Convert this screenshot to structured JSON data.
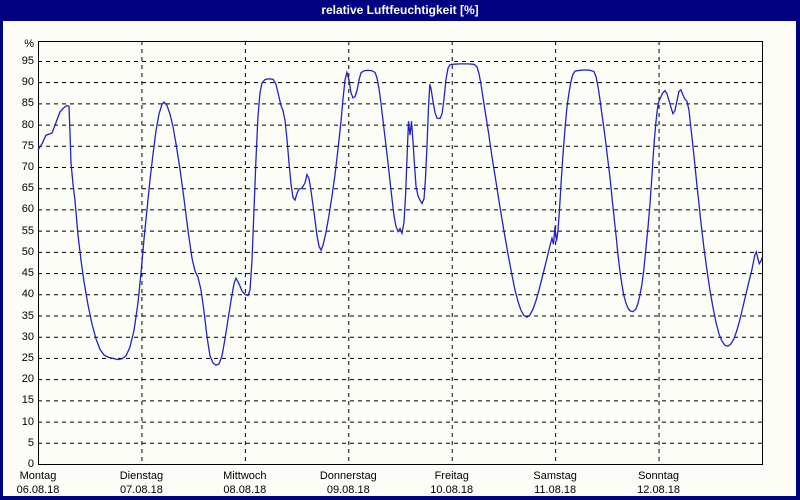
{
  "window": {
    "title": "relative Luftfeuchtigkeit [%]"
  },
  "colors": {
    "frame": "#000080",
    "title_text": "#ffffff",
    "plot_background": "#fdfdf8",
    "grid": "#000000",
    "axis": "#000000",
    "line": "#2222c8",
    "label_text": "#000000"
  },
  "chart_data": {
    "type": "line",
    "title": "relative Luftfeuchtigkeit [%]",
    "y_unit_label": "%",
    "ylabel": "relative Luftfeuchtigkeit",
    "ylim": [
      0,
      99.7
    ],
    "y_ticks": [
      0,
      5,
      10,
      15,
      20,
      25,
      30,
      35,
      40,
      45,
      50,
      55,
      60,
      65,
      70,
      75,
      80,
      85,
      90,
      95
    ],
    "grid": "dashed",
    "legend_position": "none",
    "x_days": [
      {
        "name": "Montag",
        "date": "06.08.18"
      },
      {
        "name": "Dienstag",
        "date": "07.08.18"
      },
      {
        "name": "Mittwoch",
        "date": "08.08.18"
      },
      {
        "name": "Donnerstag",
        "date": "09.08.18"
      },
      {
        "name": "Freitag",
        "date": "10.08.18"
      },
      {
        "name": "Samstag",
        "date": "11.08.18"
      },
      {
        "name": "Sonntag",
        "date": "12.08.18"
      }
    ],
    "series": [
      {
        "name": "relative Luftfeuchtigkeit [%]",
        "color": "#2222c8",
        "x_unit": "days_since_monday_0h",
        "points": [
          [
            0,
            74
          ],
          [
            0.04,
            75.5
          ],
          [
            0.077,
            77.5
          ],
          [
            0.135,
            78
          ],
          [
            0.174,
            80.5
          ],
          [
            0.213,
            83
          ],
          [
            0.251,
            84
          ],
          [
            0.28,
            84.5
          ],
          [
            0.3,
            84.3
          ],
          [
            0.309,
            78
          ],
          [
            0.319,
            71
          ],
          [
            0.338,
            66
          ],
          [
            0.358,
            62
          ],
          [
            0.387,
            54
          ],
          [
            0.416,
            48
          ],
          [
            0.445,
            43
          ],
          [
            0.483,
            37.5
          ],
          [
            0.522,
            33
          ],
          [
            0.561,
            29.5
          ],
          [
            0.599,
            27
          ],
          [
            0.638,
            25.7
          ],
          [
            0.677,
            25.2
          ],
          [
            0.725,
            24.9
          ],
          [
            0.773,
            24.6
          ],
          [
            0.812,
            24.8
          ],
          [
            0.851,
            25.5
          ],
          [
            0.889,
            27.5
          ],
          [
            0.928,
            31.5
          ],
          [
            0.967,
            38
          ],
          [
            0.996,
            45
          ],
          [
            1.025,
            53
          ],
          [
            1.054,
            60
          ],
          [
            1.083,
            67
          ],
          [
            1.112,
            73
          ],
          [
            1.141,
            78.5
          ],
          [
            1.17,
            82.5
          ],
          [
            1.199,
            84.8
          ],
          [
            1.218,
            85.3
          ],
          [
            1.247,
            84.5
          ],
          [
            1.276,
            82.5
          ],
          [
            1.305,
            79.5
          ],
          [
            1.334,
            75.5
          ],
          [
            1.373,
            69.5
          ],
          [
            1.412,
            62.5
          ],
          [
            1.45,
            55
          ],
          [
            1.489,
            48.5
          ],
          [
            1.518,
            45.5
          ],
          [
            1.547,
            44
          ],
          [
            1.576,
            41
          ],
          [
            1.605,
            36
          ],
          [
            1.634,
            30
          ],
          [
            1.663,
            25.5
          ],
          [
            1.692,
            23.8
          ],
          [
            1.721,
            23.3
          ],
          [
            1.75,
            23.6
          ],
          [
            1.779,
            25.5
          ],
          [
            1.808,
            29.5
          ],
          [
            1.837,
            34
          ],
          [
            1.866,
            38.5
          ],
          [
            1.895,
            42.5
          ],
          [
            1.914,
            43.8
          ],
          [
            1.943,
            42.5
          ],
          [
            1.972,
            40.8
          ],
          [
            2.0,
            40
          ],
          [
            2.03,
            39.7
          ],
          [
            2.05,
            41
          ],
          [
            2.069,
            48
          ],
          [
            2.088,
            60
          ],
          [
            2.108,
            72
          ],
          [
            2.127,
            82
          ],
          [
            2.146,
            87.5
          ],
          [
            2.166,
            89.8
          ],
          [
            2.195,
            90.6
          ],
          [
            2.233,
            90.8
          ],
          [
            2.272,
            90.7
          ],
          [
            2.301,
            89.5
          ],
          [
            2.33,
            86.5
          ],
          [
            2.349,
            84.5
          ],
          [
            2.369,
            83.3
          ],
          [
            2.388,
            81
          ],
          [
            2.407,
            76.5
          ],
          [
            2.427,
            71
          ],
          [
            2.446,
            66
          ],
          [
            2.465,
            62.8
          ],
          [
            2.485,
            62.2
          ],
          [
            2.504,
            63.8
          ],
          [
            2.523,
            64.8
          ],
          [
            2.552,
            65
          ],
          [
            2.581,
            66.2
          ],
          [
            2.601,
            68.2
          ],
          [
            2.62,
            67.3
          ],
          [
            2.639,
            64.5
          ],
          [
            2.659,
            61
          ],
          [
            2.678,
            57.5
          ],
          [
            2.697,
            54
          ],
          [
            2.717,
            51.3
          ],
          [
            2.736,
            50.4
          ],
          [
            2.755,
            51.5
          ],
          [
            2.784,
            54.5
          ],
          [
            2.813,
            58.5
          ],
          [
            2.842,
            63
          ],
          [
            2.871,
            68
          ],
          [
            2.9,
            74
          ],
          [
            2.929,
            80.5
          ],
          [
            2.949,
            86
          ],
          [
            2.968,
            90.5
          ],
          [
            2.987,
            92.3
          ],
          [
            3.007,
            90.5
          ],
          [
            3.026,
            87.5
          ],
          [
            3.046,
            86.3
          ],
          [
            3.065,
            86.6
          ],
          [
            3.084,
            88
          ],
          [
            3.104,
            90.5
          ],
          [
            3.123,
            92.2
          ],
          [
            3.152,
            92.7
          ],
          [
            3.191,
            92.8
          ],
          [
            3.229,
            92.7
          ],
          [
            3.258,
            92.3
          ],
          [
            3.278,
            91
          ],
          [
            3.297,
            88.5
          ],
          [
            3.316,
            85
          ],
          [
            3.336,
            81
          ],
          [
            3.355,
            77
          ],
          [
            3.384,
            71
          ],
          [
            3.413,
            64.5
          ],
          [
            3.442,
            58.5
          ],
          [
            3.461,
            56
          ],
          [
            3.481,
            54.8
          ],
          [
            3.5,
            55.5
          ],
          [
            3.519,
            54.4
          ],
          [
            3.539,
            57
          ],
          [
            3.553,
            63
          ],
          [
            3.568,
            72
          ],
          [
            3.582,
            80.8
          ],
          [
            3.597,
            77.5
          ],
          [
            3.611,
            80.8
          ],
          [
            3.626,
            76
          ],
          [
            3.64,
            70.5
          ],
          [
            3.655,
            65.5
          ],
          [
            3.674,
            63.2
          ],
          [
            3.693,
            62.2
          ],
          [
            3.713,
            61.4
          ],
          [
            3.732,
            62.5
          ],
          [
            3.746,
            67
          ],
          [
            3.761,
            75
          ],
          [
            3.775,
            83.5
          ],
          [
            3.788,
            89.5
          ],
          [
            3.8,
            88.5
          ],
          [
            3.819,
            85.5
          ],
          [
            3.838,
            82.8
          ],
          [
            3.858,
            81.5
          ],
          [
            3.887,
            81.4
          ],
          [
            3.906,
            82.5
          ],
          [
            3.925,
            86
          ],
          [
            3.944,
            90.5
          ],
          [
            3.964,
            93.3
          ],
          [
            3.983,
            94.1
          ],
          [
            4.002,
            94.2
          ],
          [
            4.08,
            94.3
          ],
          [
            4.157,
            94.3
          ],
          [
            4.215,
            94.2
          ],
          [
            4.244,
            93.6
          ],
          [
            4.264,
            92
          ],
          [
            4.283,
            89.5
          ],
          [
            4.302,
            86.5
          ],
          [
            4.331,
            82
          ],
          [
            4.36,
            77.5
          ],
          [
            4.389,
            72.5
          ],
          [
            4.428,
            66.5
          ],
          [
            4.467,
            60.5
          ],
          [
            4.505,
            55
          ],
          [
            4.544,
            49.5
          ],
          [
            4.583,
            44.5
          ],
          [
            4.612,
            41
          ],
          [
            4.641,
            38.3
          ],
          [
            4.67,
            36.2
          ],
          [
            4.699,
            35
          ],
          [
            4.728,
            34.6
          ],
          [
            4.757,
            35.2
          ],
          [
            4.786,
            36.5
          ],
          [
            4.815,
            38.5
          ],
          [
            4.844,
            41
          ],
          [
            4.873,
            43.8
          ],
          [
            4.902,
            46.6
          ],
          [
            4.931,
            49.5
          ],
          [
            4.95,
            51.5
          ],
          [
            4.97,
            53.2
          ],
          [
            4.984,
            51.8
          ],
          [
            4.999,
            56
          ],
          [
            5.013,
            52.5
          ],
          [
            5.028,
            55
          ],
          [
            5.042,
            60
          ],
          [
            5.057,
            66
          ],
          [
            5.076,
            73
          ],
          [
            5.095,
            79
          ],
          [
            5.114,
            84
          ],
          [
            5.134,
            87.5
          ],
          [
            5.153,
            90.2
          ],
          [
            5.172,
            91.8
          ],
          [
            5.192,
            92.6
          ],
          [
            5.24,
            92.8
          ],
          [
            5.288,
            92.9
          ],
          [
            5.337,
            92.8
          ],
          [
            5.375,
            92.5
          ],
          [
            5.395,
            91.3
          ],
          [
            5.414,
            89
          ],
          [
            5.433,
            86
          ],
          [
            5.452,
            82.5
          ],
          [
            5.472,
            79
          ],
          [
            5.491,
            75.5
          ],
          [
            5.51,
            71.5
          ],
          [
            5.53,
            67.5
          ],
          [
            5.549,
            63
          ],
          [
            5.568,
            58.5
          ],
          [
            5.588,
            54
          ],
          [
            5.607,
            49.5
          ],
          [
            5.626,
            45.5
          ],
          [
            5.645,
            42.3
          ],
          [
            5.665,
            39.7
          ],
          [
            5.684,
            38
          ],
          [
            5.703,
            36.8
          ],
          [
            5.723,
            36.1
          ],
          [
            5.752,
            35.9
          ],
          [
            5.781,
            36.5
          ],
          [
            5.8,
            37.8
          ],
          [
            5.819,
            39.8
          ],
          [
            5.839,
            42.3
          ],
          [
            5.858,
            46
          ],
          [
            5.877,
            50.5
          ],
          [
            5.897,
            55.5
          ],
          [
            5.916,
            61
          ],
          [
            5.931,
            66
          ],
          [
            5.945,
            71.5
          ],
          [
            5.96,
            76.5
          ],
          [
            5.974,
            80.5
          ],
          [
            5.988,
            83.5
          ],
          [
            6.003,
            85.5
          ],
          [
            6.023,
            86.6
          ],
          [
            6.042,
            87.5
          ],
          [
            6.061,
            88
          ],
          [
            6.081,
            87.3
          ],
          [
            6.1,
            85.8
          ],
          [
            6.12,
            84
          ],
          [
            6.139,
            82.6
          ],
          [
            6.158,
            83.3
          ],
          [
            6.177,
            85.5
          ],
          [
            6.197,
            87.8
          ],
          [
            6.216,
            88.2
          ],
          [
            6.235,
            87
          ],
          [
            6.255,
            86
          ],
          [
            6.274,
            85.5
          ],
          [
            6.293,
            83.5
          ],
          [
            6.312,
            79.5
          ],
          [
            6.332,
            75
          ],
          [
            6.351,
            70.5
          ],
          [
            6.37,
            66
          ],
          [
            6.39,
            61.5
          ],
          [
            6.409,
            57
          ],
          [
            6.438,
            51
          ],
          [
            6.467,
            45.8
          ],
          [
            6.496,
            41
          ],
          [
            6.525,
            37
          ],
          [
            6.554,
            33.5
          ],
          [
            6.583,
            30.7
          ],
          [
            6.612,
            29
          ],
          [
            6.641,
            28
          ],
          [
            6.67,
            27.8
          ],
          [
            6.699,
            28.3
          ],
          [
            6.728,
            29.5
          ],
          [
            6.757,
            31.5
          ],
          [
            6.786,
            34
          ],
          [
            6.815,
            37
          ],
          [
            6.844,
            40
          ],
          [
            6.873,
            43
          ],
          [
            6.902,
            45.8
          ],
          [
            6.912,
            47
          ],
          [
            6.931,
            49.3
          ],
          [
            6.945,
            50
          ],
          [
            6.96,
            48.4
          ],
          [
            6.974,
            47.2
          ],
          [
            6.989,
            47.8
          ],
          [
            7.0,
            48.6
          ]
        ]
      }
    ]
  }
}
